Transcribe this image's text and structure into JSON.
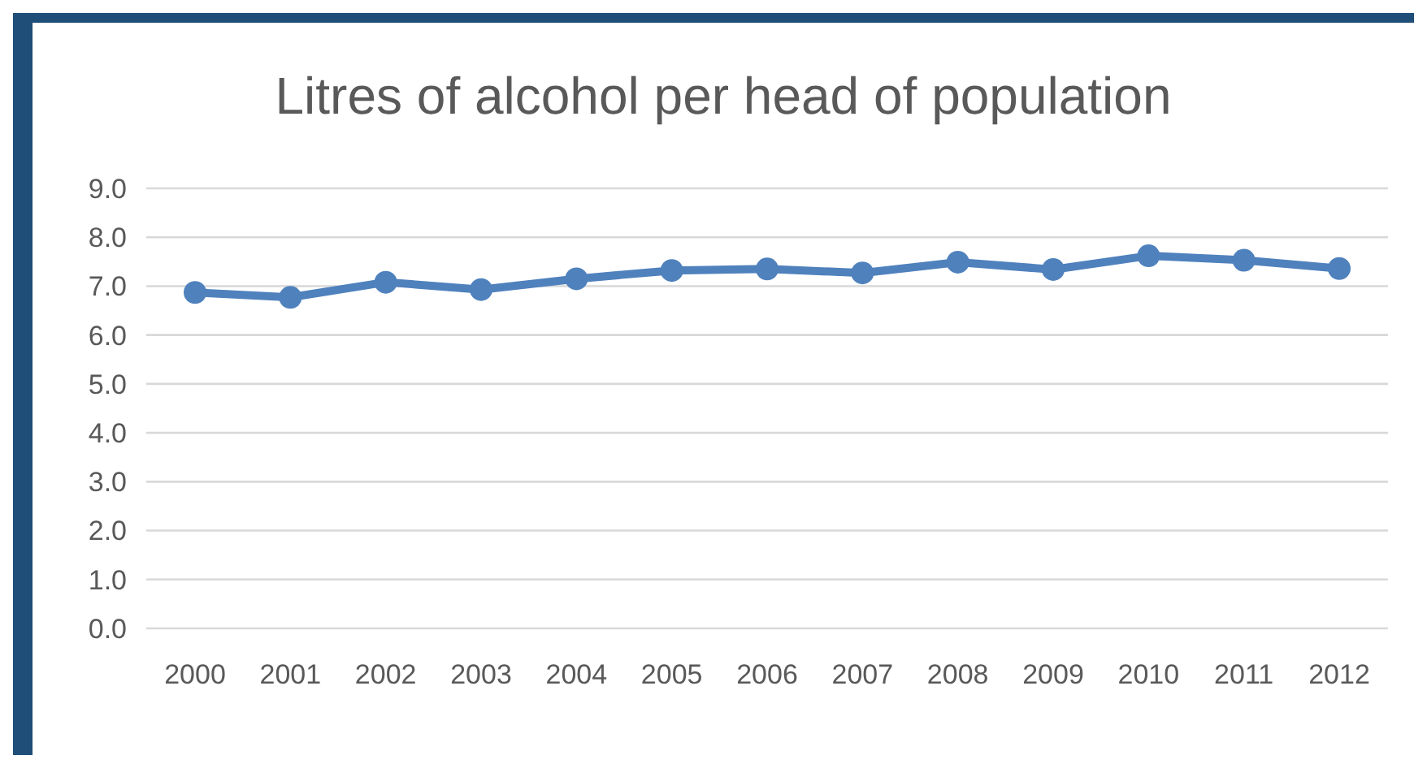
{
  "chart_data": {
    "type": "line",
    "title": "Litres of alcohol per head of population",
    "categories": [
      "2000",
      "2001",
      "2002",
      "2003",
      "2004",
      "2005",
      "2006",
      "2007",
      "2008",
      "2009",
      "2010",
      "2011",
      "2012"
    ],
    "series": [
      {
        "color": "#4f81bd",
        "values": [
          6.87,
          6.77,
          7.08,
          6.93,
          7.15,
          7.32,
          7.35,
          7.27,
          7.49,
          7.34,
          7.62,
          7.53,
          7.36
        ]
      }
    ],
    "ylim": [
      0,
      9
    ],
    "yticks": [
      {
        "value": 0,
        "label": "0.0"
      },
      {
        "value": 1,
        "label": "1.0"
      },
      {
        "value": 2,
        "label": "2.0"
      },
      {
        "value": 3,
        "label": "3.0"
      },
      {
        "value": 4,
        "label": "4.0"
      },
      {
        "value": 5,
        "label": "5.0"
      },
      {
        "value": 6,
        "label": "6.0"
      },
      {
        "value": 7,
        "label": "7.0"
      },
      {
        "value": 8,
        "label": "8.0"
      },
      {
        "value": 9,
        "label": "9.0"
      }
    ],
    "grid": "y",
    "marker": "circle",
    "line_style": "solid"
  }
}
